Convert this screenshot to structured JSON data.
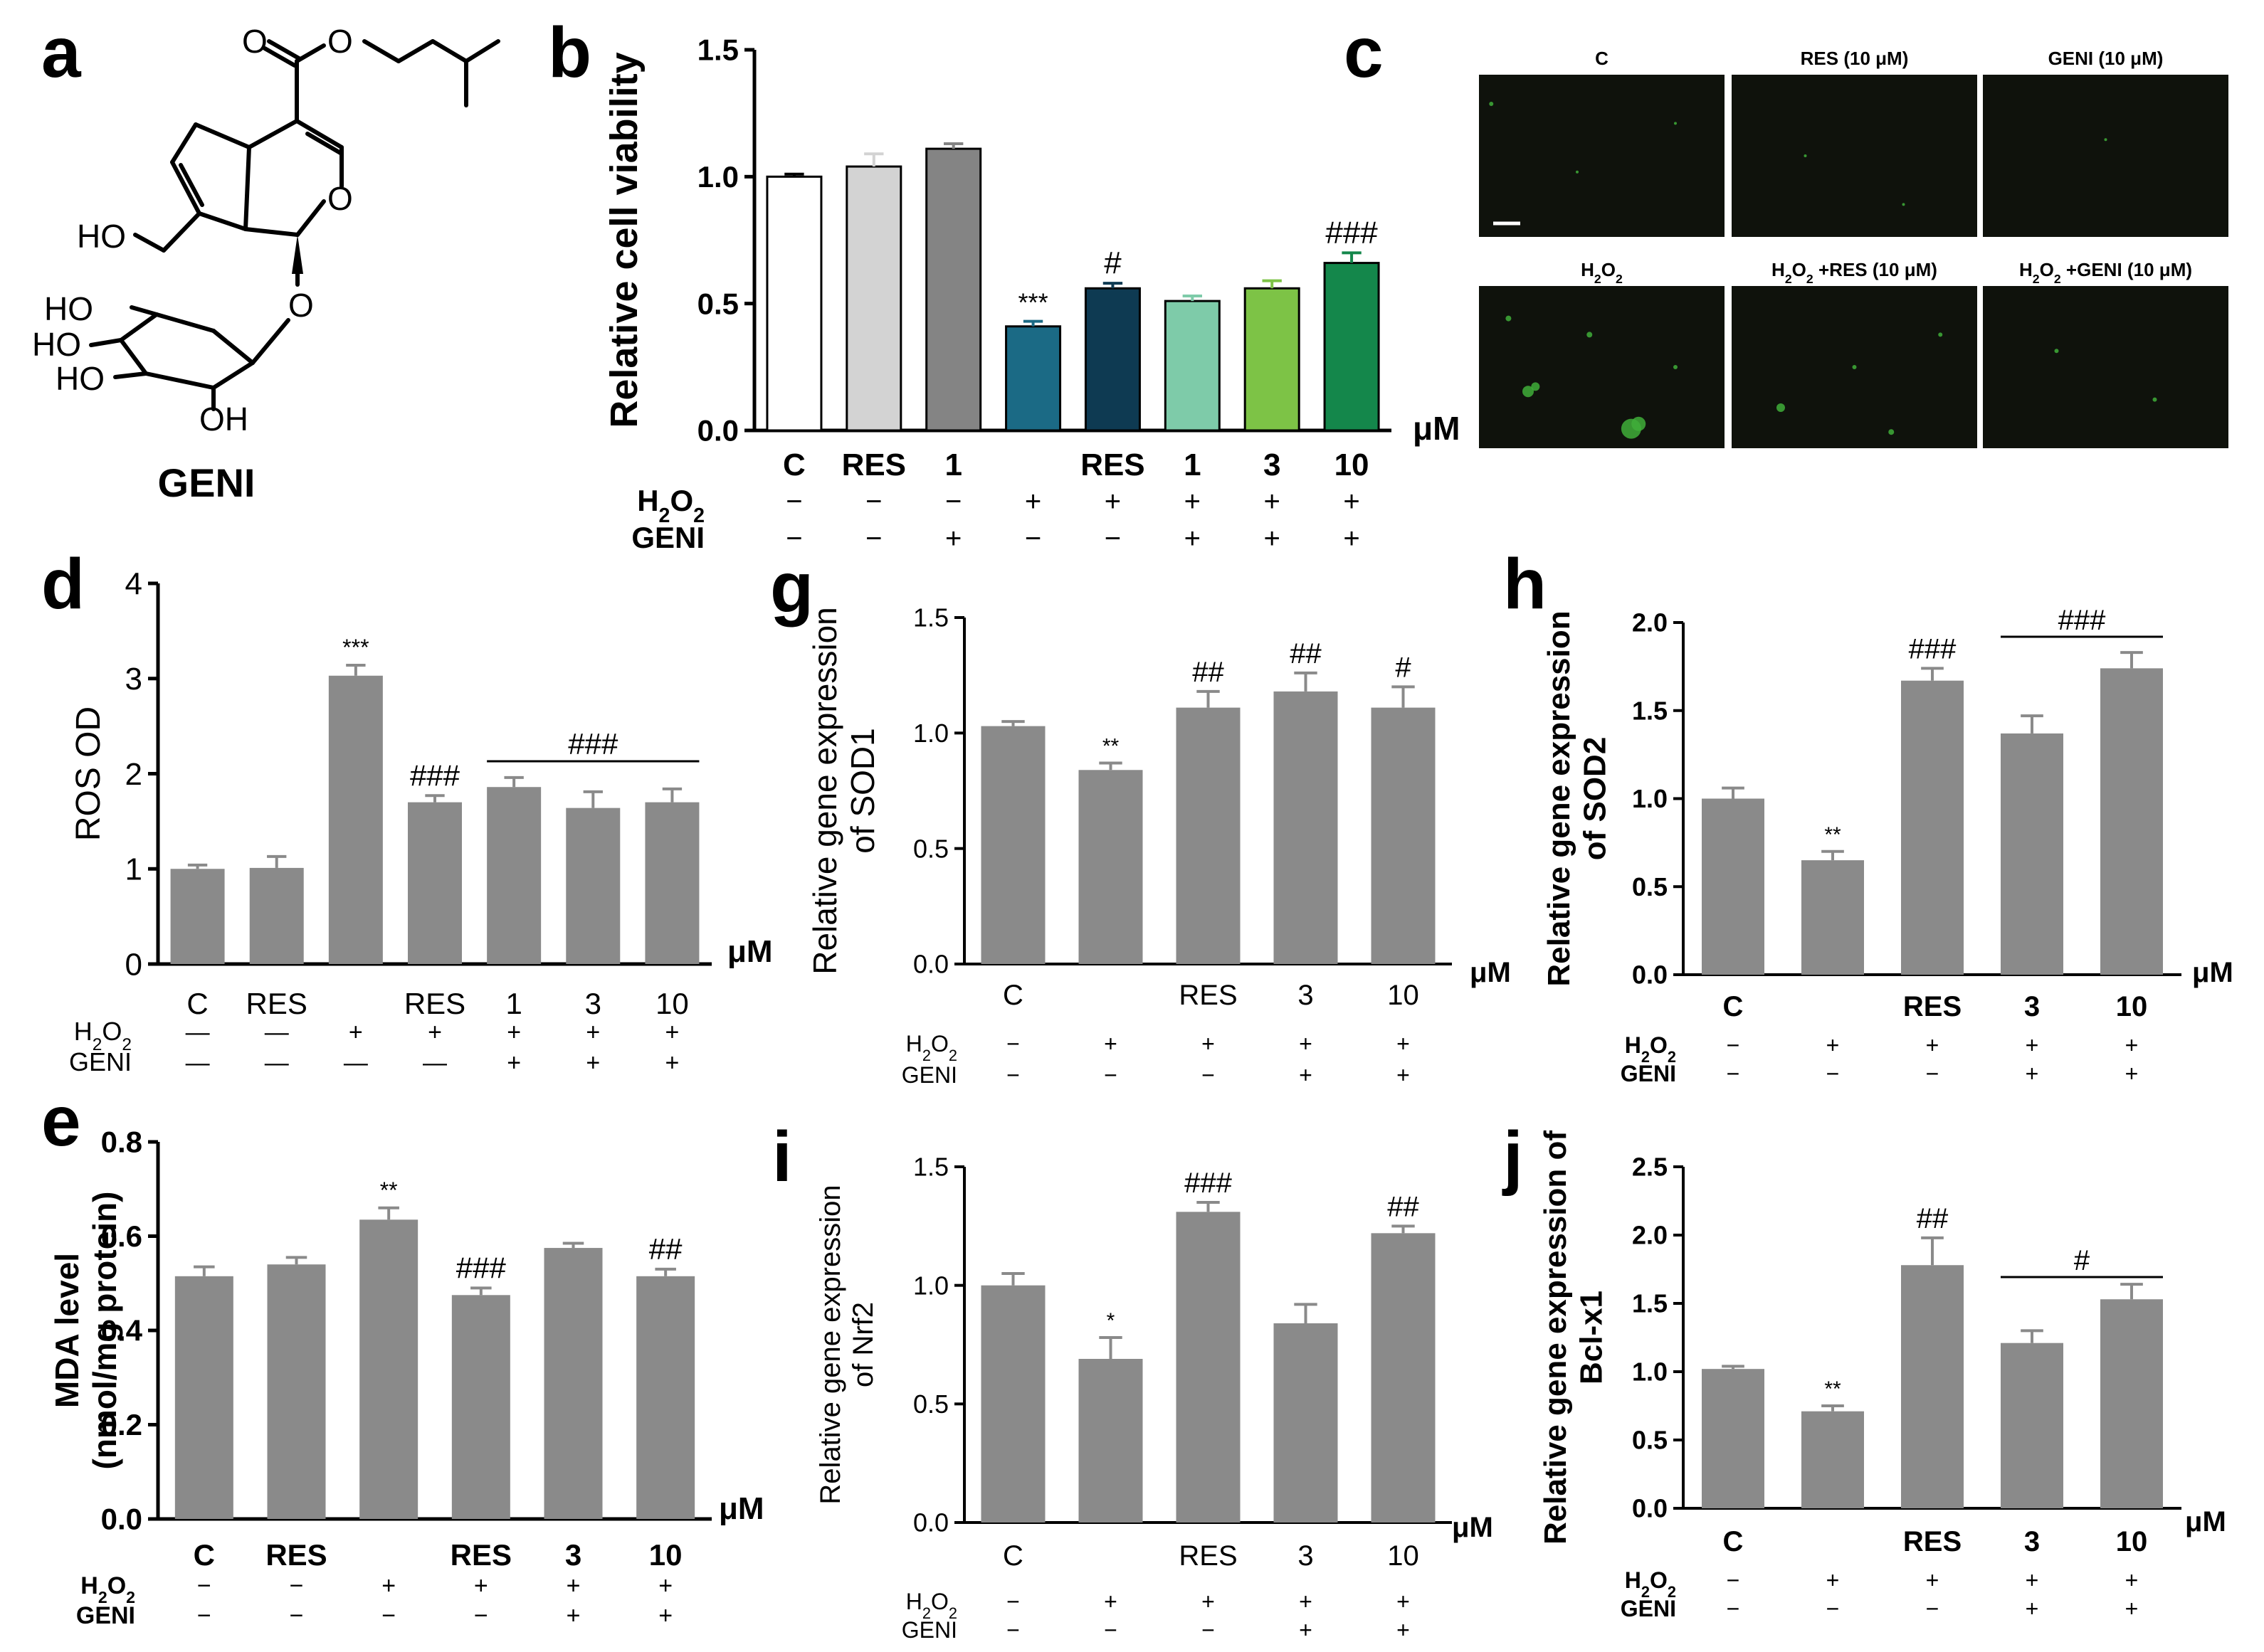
{
  "figure": {
    "panel_letters": [
      "a",
      "b",
      "c",
      "d",
      "e",
      "g",
      "h",
      "i",
      "j"
    ],
    "unit": "μM",
    "h2o2_label": "H2O2",
    "geni_label": "GENI"
  },
  "molecule": {
    "name": "GENI",
    "atoms": [
      "O",
      "O",
      "HO",
      "O",
      "HO",
      "HO",
      "HO",
      "O",
      "OH"
    ]
  },
  "micrographs": {
    "titles": [
      "C",
      "RES (10 μM)",
      "GENI (10 μM)",
      "H2O2",
      "H2O2 +RES (10 μM)",
      "H2O2 +GENI (10 μM)"
    ]
  },
  "chart_data": [
    {
      "id": "b",
      "type": "bar",
      "ylabel": "Relative cell viability",
      "ylim": [
        0,
        1.5
      ],
      "yticks": [
        "0.0",
        "0.5",
        "1.0",
        "1.5"
      ],
      "categories": [
        "C",
        "RES",
        "1",
        "",
        "RES",
        "1",
        "3",
        "10"
      ],
      "h2o2": [
        "−",
        "−",
        "−",
        "+",
        "+",
        "+",
        "+",
        "+"
      ],
      "geni": [
        "−",
        "−",
        "+",
        "−",
        "−",
        "+",
        "+",
        "+"
      ],
      "values": [
        1.0,
        1.04,
        1.11,
        0.41,
        0.56,
        0.51,
        0.56,
        0.66
      ],
      "errors": [
        0.01,
        0.05,
        0.02,
        0.02,
        0.02,
        0.02,
        0.03,
        0.04
      ],
      "colors": [
        "#ffffff",
        "#d3d3d3",
        "#848484",
        "#1b6a85",
        "#0e3a52",
        "#7ecba9",
        "#7dc346",
        "#14874b"
      ],
      "annotations": [
        "",
        "",
        "",
        "***",
        "#",
        "",
        "",
        "###"
      ]
    },
    {
      "id": "d",
      "type": "bar",
      "ylabel": "ROS OD",
      "ylim": [
        0,
        4
      ],
      "yticks": [
        "0",
        "1",
        "2",
        "3",
        "4"
      ],
      "categories": [
        "C",
        "RES",
        "",
        "RES",
        "1",
        "3",
        "10"
      ],
      "h2o2": [
        "—",
        "—",
        "+",
        "+",
        "+",
        "+",
        "+"
      ],
      "geni": [
        "—",
        "—",
        "—",
        "—",
        "+",
        "+",
        "+"
      ],
      "values": [
        1.0,
        1.01,
        3.03,
        1.7,
        1.86,
        1.64,
        1.7
      ],
      "errors": [
        0.04,
        0.12,
        0.11,
        0.07,
        0.1,
        0.17,
        0.14
      ],
      "annotations": [
        "",
        "",
        "***",
        "###",
        "",
        "",
        ""
      ],
      "bracket_label": "###"
    },
    {
      "id": "e",
      "type": "bar",
      "ylabel": "MDA level",
      "ylabel2": "(nmol/mg protein)",
      "ylim": [
        0,
        0.8
      ],
      "yticks": [
        "0.0",
        "0.2",
        "0.4",
        "0.6",
        "0.8"
      ],
      "categories": [
        "C",
        "RES",
        "",
        "RES",
        "3",
        "10"
      ],
      "h2o2": [
        "−",
        "−",
        "+",
        "+",
        "+",
        "+"
      ],
      "geni": [
        "−",
        "−",
        "−",
        "−",
        "+",
        "+"
      ],
      "values": [
        0.515,
        0.54,
        0.635,
        0.475,
        0.575,
        0.515
      ],
      "errors": [
        0.02,
        0.015,
        0.025,
        0.015,
        0.01,
        0.015
      ],
      "annotations": [
        "",
        "",
        "**",
        "###",
        "",
        "##"
      ]
    },
    {
      "id": "g",
      "type": "bar",
      "ylabel": "Relative gene expression",
      "ylabel2": "of SOD1",
      "ylim": [
        0,
        1.5
      ],
      "yticks": [
        "0.0",
        "0.5",
        "1.0",
        "1.5"
      ],
      "categories": [
        "C",
        "",
        "RES",
        "3",
        "10"
      ],
      "h2o2": [
        "−",
        "+",
        "+",
        "+",
        "+"
      ],
      "geni": [
        "−",
        "−",
        "−",
        "+",
        "+"
      ],
      "values": [
        1.03,
        0.84,
        1.11,
        1.18,
        1.11
      ],
      "errors": [
        0.02,
        0.03,
        0.07,
        0.08,
        0.09
      ],
      "annotations": [
        "",
        "**",
        "##",
        "##",
        "#"
      ]
    },
    {
      "id": "h",
      "type": "bar",
      "ylabel": "Relative gene expression",
      "ylabel2": "of SOD2",
      "ylim": [
        0,
        2.0
      ],
      "yticks": [
        "0.0",
        "0.5",
        "1.0",
        "1.5",
        "2.0"
      ],
      "categories": [
        "C",
        "",
        "RES",
        "3",
        "10"
      ],
      "h2o2": [
        "−",
        "+",
        "+",
        "+",
        "+"
      ],
      "geni": [
        "−",
        "−",
        "−",
        "+",
        "+"
      ],
      "values": [
        1.0,
        0.65,
        1.67,
        1.37,
        1.74
      ],
      "errors": [
        0.06,
        0.05,
        0.07,
        0.1,
        0.09
      ],
      "annotations": [
        "",
        "**",
        "###",
        "",
        ""
      ],
      "bracket_label": "###"
    },
    {
      "id": "i",
      "type": "bar",
      "ylabel": "Relative gene expression",
      "ylabel2": "of Nrf2",
      "ylim": [
        0,
        1.5
      ],
      "yticks": [
        "0.0",
        "0.5",
        "1.0",
        "1.5"
      ],
      "categories": [
        "C",
        "",
        "RES",
        "3",
        "10"
      ],
      "h2o2": [
        "−",
        "+",
        "+",
        "+",
        "+"
      ],
      "geni": [
        "−",
        "−",
        "−",
        "+",
        "+"
      ],
      "values": [
        1.0,
        0.69,
        1.31,
        0.84,
        1.22
      ],
      "errors": [
        0.05,
        0.09,
        0.04,
        0.08,
        0.03
      ],
      "annotations": [
        "",
        "*",
        "###",
        "",
        "##"
      ]
    },
    {
      "id": "j",
      "type": "bar",
      "ylabel": "Relative gene expression of",
      "ylabel2": "Bcl-x1",
      "ylim": [
        0,
        2.5
      ],
      "yticks": [
        "0.0",
        "0.5",
        "1.0",
        "1.5",
        "2.0",
        "2.5"
      ],
      "categories": [
        "C",
        "",
        "RES",
        "3",
        "10"
      ],
      "h2o2": [
        "−",
        "+",
        "+",
        "+",
        "+"
      ],
      "geni": [
        "−",
        "−",
        "−",
        "+",
        "+"
      ],
      "values": [
        1.02,
        0.71,
        1.78,
        1.21,
        1.53
      ],
      "errors": [
        0.02,
        0.04,
        0.2,
        0.09,
        0.11
      ],
      "annotations": [
        "",
        "**",
        "##",
        "",
        ""
      ],
      "bracket_label": "#"
    }
  ]
}
